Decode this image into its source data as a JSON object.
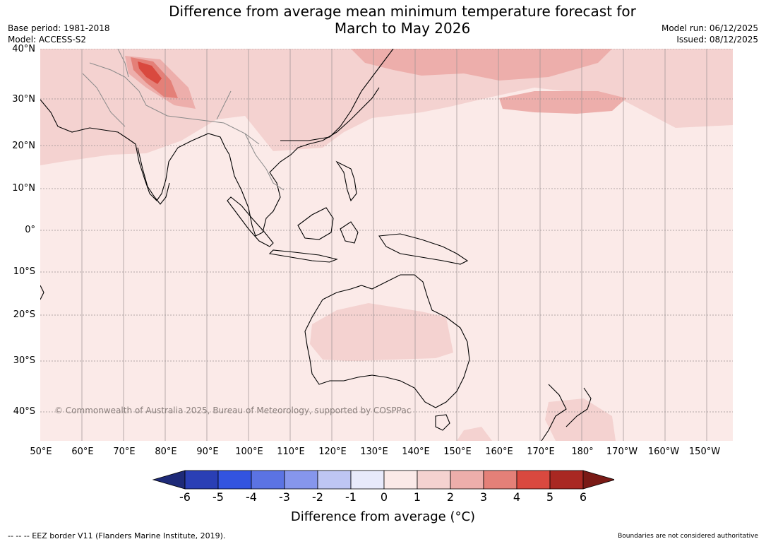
{
  "title": {
    "line1": "Difference from average mean minimum temperature forecast for",
    "line2": "March to May 2026"
  },
  "meta": {
    "base_period": "Base period: 1981-2018",
    "model": "Model: ACCESS-S2",
    "model_run": "Model run: 06/12/2025",
    "issued": "Issued: 08/12/2025"
  },
  "map": {
    "lat_labels": [
      "40°N",
      "30°N",
      "20°N",
      "10°N",
      "0°",
      "10°S",
      "20°S",
      "30°S",
      "40°S"
    ],
    "lon_labels": [
      "50°E",
      "60°E",
      "70°E",
      "80°E",
      "90°E",
      "100°E",
      "110°E",
      "120°E",
      "130°E",
      "140°E",
      "150°E",
      "160°E",
      "170°E",
      "180°",
      "170°W",
      "160°W",
      "150°W"
    ],
    "copyright": "© Commonwealth of Australia 2025, Bureau of Meteorology, supported by COSPPac"
  },
  "colorbar": {
    "ticks": [
      "-6",
      "-5",
      "-4",
      "-3",
      "-2",
      "-1",
      "0",
      "1",
      "2",
      "3",
      "4",
      "5",
      "6"
    ],
    "colors": [
      "#1e2a78",
      "#2a3fb5",
      "#3354e0",
      "#5b73e3",
      "#8696ec",
      "#bec6f3",
      "#e8eafb",
      "#fbeae8",
      "#f4d2d0",
      "#edaeab",
      "#e48078",
      "#d9493f",
      "#a92822",
      "#7a1a16"
    ],
    "label": "Difference from average (°C)"
  },
  "footer": {
    "eez": "--  --  -- EEZ border V11 (Flanders Marine Institute, 2019).",
    "disclaimer": "Boundaries are not considered authoritative"
  }
}
